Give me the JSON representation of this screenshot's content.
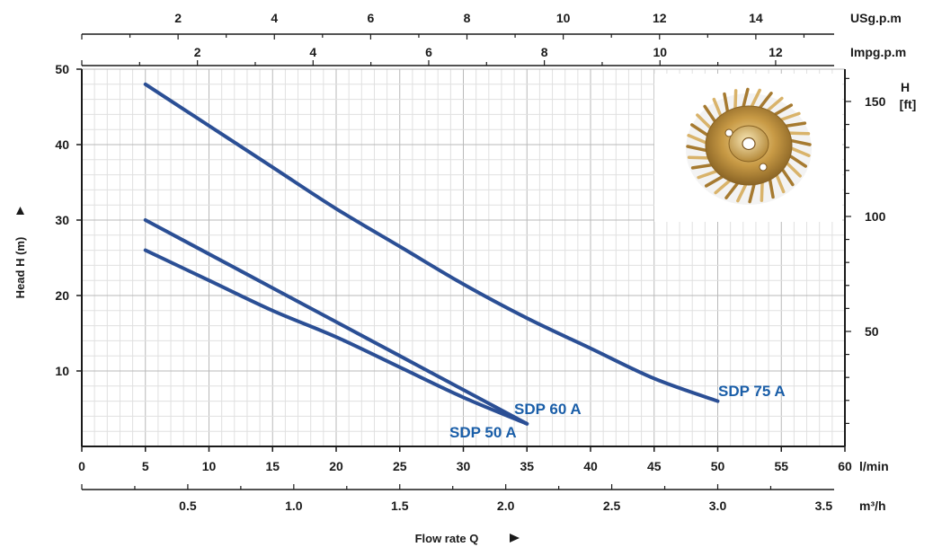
{
  "chart_data": {
    "type": "line",
    "xlabel": "Flow rate Q",
    "ylabel": "Head H (m)",
    "x_unit": "l/min",
    "xlim": [
      0,
      60
    ],
    "ylim": [
      0,
      50
    ],
    "x_ticks": [
      0,
      5,
      10,
      15,
      20,
      25,
      30,
      35,
      40,
      45,
      50,
      55,
      60
    ],
    "y_ticks": [
      10,
      20,
      30,
      40,
      50
    ],
    "m3h_axis": {
      "unit": "m³/h",
      "ticks": [
        0.5,
        1.0,
        1.5,
        2.0,
        2.5,
        3.0,
        3.5
      ],
      "tick_labels": [
        "0.5",
        "1.0",
        "1.5",
        "2.0",
        "2.5",
        "3.0",
        "3.5"
      ]
    },
    "usgpm_axis": {
      "unit": "USg.p.m",
      "ticks": [
        2,
        4,
        6,
        8,
        10,
        12,
        14
      ]
    },
    "impgpm_axis": {
      "unit": "Impg.p.m",
      "ticks": [
        2,
        4,
        6,
        8,
        10,
        12
      ]
    },
    "ft_axis": {
      "unit": "H [ft]",
      "ticks": [
        50,
        100,
        150
      ]
    },
    "series": [
      {
        "name": "SDP 50 A",
        "x": [
          5,
          10,
          15,
          20,
          25,
          30,
          35
        ],
        "y": [
          26,
          22,
          18,
          14.5,
          10.5,
          6.5,
          3
        ],
        "color": "#2b4f95"
      },
      {
        "name": "SDP 60 A",
        "x": [
          5,
          10,
          15,
          20,
          25,
          30,
          35
        ],
        "y": [
          30,
          25.5,
          21,
          16.5,
          12,
          7.5,
          3
        ],
        "color": "#2b4f95"
      },
      {
        "name": "SDP 75 A",
        "x": [
          5,
          10,
          15,
          20,
          25,
          30,
          35,
          40,
          45,
          50
        ],
        "y": [
          48,
          42.5,
          37,
          31.5,
          26.5,
          21.5,
          17,
          13,
          9,
          6
        ],
        "color": "#2b4f95"
      }
    ],
    "label_color": "#1a5ea8",
    "grid": true,
    "inset_image": "impeller-photo"
  }
}
